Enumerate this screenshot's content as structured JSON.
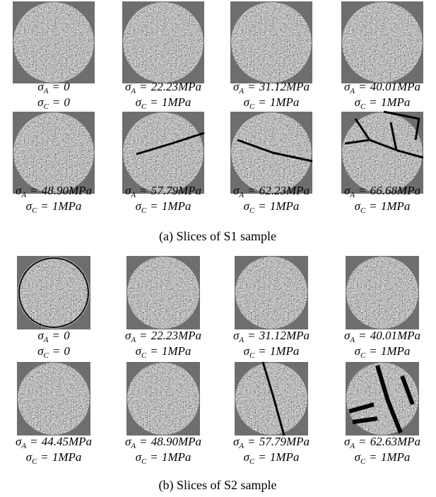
{
  "symbols": {
    "sigma": "σ",
    "a": "A",
    "c": "C",
    "eq": "="
  },
  "panels": [
    {
      "caption": "(a) Slices of S1 sample",
      "slices": [
        {
          "sa": "0",
          "sc": "0"
        },
        {
          "sa": "22.23MPa",
          "sc": "1MPa"
        },
        {
          "sa": "31.12MPa",
          "sc": "1MPa"
        },
        {
          "sa": "40.01MPa",
          "sc": "1MPa"
        },
        {
          "sa": "48.90MPa",
          "sc": "1MPa"
        },
        {
          "sa": "57.79MPa",
          "sc": "1MPa"
        },
        {
          "sa": "62.23MPa",
          "sc": "1MPa"
        },
        {
          "sa": "66.68MPa",
          "sc": "1MPa"
        }
      ]
    },
    {
      "caption": "(b) Slices of S2 sample",
      "slices": [
        {
          "sa": "0",
          "sc": "0"
        },
        {
          "sa": "22.23MPa",
          "sc": "1MPa"
        },
        {
          "sa": "31.12MPa",
          "sc": "1MPa"
        },
        {
          "sa": "40.01MPa",
          "sc": "1MPa"
        },
        {
          "sa": "44.45MPa",
          "sc": "1MPa"
        },
        {
          "sa": "48.90MPa",
          "sc": "1MPa"
        },
        {
          "sa": "57.79MPa",
          "sc": "1MPa"
        },
        {
          "sa": "62.63MPa",
          "sc": "1MPa"
        }
      ]
    }
  ]
}
